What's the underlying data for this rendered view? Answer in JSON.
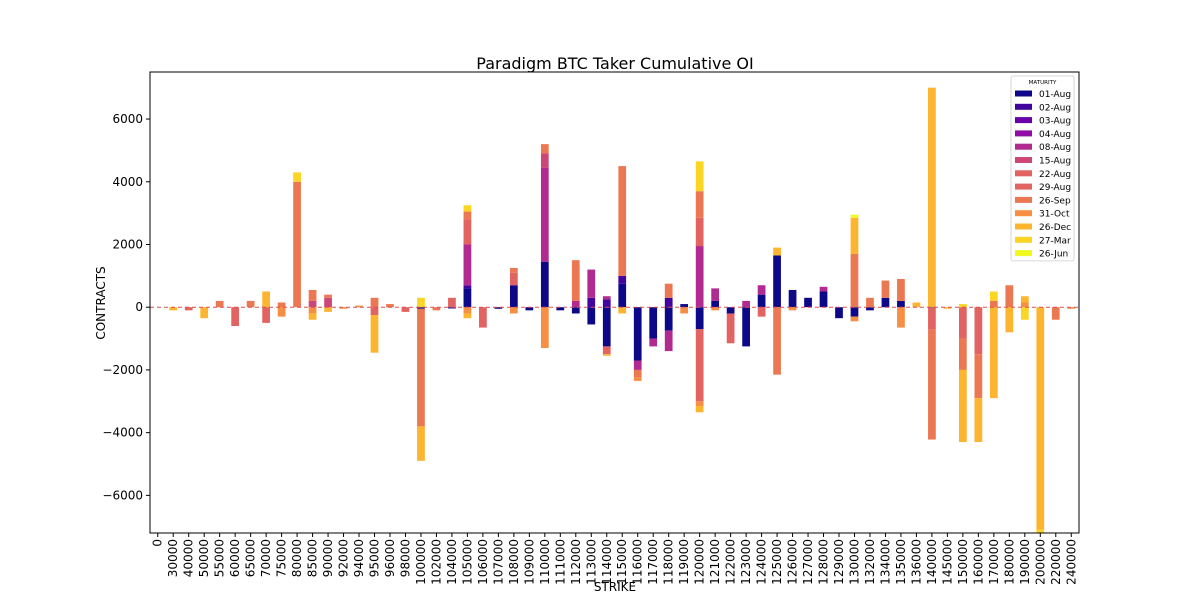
{
  "chart_data": {
    "type": "bar",
    "stacked": true,
    "title": "Paradigm BTC Taker Cumulative OI",
    "xlabel": "STRIKE",
    "ylabel": "CONTRACTS",
    "ylim": [
      -7200,
      7500
    ],
    "yticks": [
      -6000,
      -4000,
      -2000,
      0,
      2000,
      4000,
      6000
    ],
    "ytick_labels": [
      "−6000",
      "−4000",
      "−2000",
      "0",
      "2000",
      "4000",
      "6000"
    ],
    "legend_title": "MATURITY",
    "legend_position": "top-right",
    "categories": [
      "0",
      "30000",
      "40000",
      "50000",
      "55000",
      "60000",
      "65000",
      "70000",
      "75000",
      "80000",
      "85000",
      "90000",
      "92000",
      "94000",
      "95000",
      "96000",
      "98000",
      "100000",
      "102000",
      "104000",
      "105000",
      "106000",
      "107000",
      "108000",
      "109000",
      "110000",
      "111000",
      "112000",
      "113000",
      "114000",
      "115000",
      "116000",
      "117000",
      "118000",
      "119000",
      "120000",
      "121000",
      "122000",
      "123000",
      "124000",
      "125000",
      "126000",
      "127000",
      "128000",
      "129000",
      "130000",
      "132000",
      "134000",
      "135000",
      "136000",
      "140000",
      "145000",
      "150000",
      "160000",
      "170000",
      "180000",
      "190000",
      "200000",
      "220000",
      "240000"
    ],
    "series": [
      {
        "name": "01-Aug",
        "color": "#0d0887",
        "values": [
          0,
          0,
          0,
          0,
          0,
          0,
          0,
          0,
          0,
          0,
          0,
          0,
          0,
          0,
          0,
          0,
          0,
          -50,
          0,
          -40,
          600,
          0,
          -50,
          700,
          -100,
          1450,
          -100,
          -200,
          -550,
          -1250,
          750,
          -1700,
          -1000,
          -750,
          100,
          -700,
          200,
          -200,
          -1250,
          400,
          1650,
          550,
          300,
          500,
          -350,
          -300,
          -100,
          300,
          200,
          0,
          -20,
          0,
          0,
          0,
          0,
          0,
          0,
          0,
          0,
          0
        ]
      },
      {
        "name": "02-Aug",
        "color": "#41049d",
        "values": [
          0,
          0,
          0,
          0,
          0,
          0,
          0,
          0,
          0,
          0,
          0,
          0,
          0,
          0,
          0,
          0,
          0,
          0,
          0,
          0,
          100,
          0,
          0,
          0,
          0,
          0,
          0,
          0,
          300,
          250,
          250,
          0,
          0,
          300,
          0,
          0,
          0,
          0,
          0,
          0,
          0,
          0,
          0,
          0,
          0,
          0,
          0,
          0,
          0,
          0,
          0,
          0,
          0,
          0,
          0,
          0,
          0,
          0,
          0,
          0
        ]
      },
      {
        "name": "03-Aug",
        "color": "#6a00a8",
        "values": [
          0,
          0,
          0,
          0,
          0,
          0,
          0,
          0,
          0,
          0,
          0,
          0,
          0,
          0,
          0,
          0,
          0,
          0,
          0,
          0,
          0,
          0,
          0,
          0,
          0,
          0,
          0,
          0,
          0,
          0,
          0,
          0,
          0,
          0,
          0,
          0,
          0,
          0,
          0,
          0,
          0,
          0,
          0,
          0,
          0,
          0,
          0,
          0,
          0,
          0,
          0,
          0,
          0,
          0,
          0,
          0,
          0,
          0,
          0,
          0
        ]
      },
      {
        "name": "04-Aug",
        "color": "#8f0da4",
        "values": [
          0,
          0,
          0,
          0,
          0,
          0,
          0,
          0,
          0,
          0,
          0,
          0,
          0,
          0,
          0,
          0,
          0,
          0,
          0,
          0,
          0,
          0,
          0,
          0,
          0,
          0,
          0,
          0,
          0,
          0,
          0,
          0,
          0,
          0,
          0,
          0,
          0,
          0,
          0,
          0,
          0,
          0,
          0,
          0,
          0,
          0,
          0,
          0,
          0,
          0,
          0,
          0,
          0,
          0,
          0,
          0,
          0,
          0,
          0,
          0
        ]
      },
      {
        "name": "08-Aug",
        "color": "#b12a90",
        "values": [
          0,
          0,
          0,
          0,
          0,
          0,
          0,
          0,
          0,
          0,
          0,
          0,
          0,
          0,
          0,
          0,
          0,
          0,
          0,
          0,
          1300,
          0,
          0,
          0,
          0,
          3000,
          0,
          200,
          900,
          100,
          0,
          -300,
          -250,
          -650,
          0,
          1950,
          400,
          0,
          200,
          300,
          0,
          0,
          0,
          150,
          0,
          0,
          0,
          0,
          0,
          0,
          0,
          0,
          0,
          0,
          0,
          0,
          0,
          0,
          0,
          0
        ]
      },
      {
        "name": "15-Aug",
        "color": "#cc4778",
        "values": [
          0,
          0,
          0,
          0,
          0,
          0,
          0,
          0,
          0,
          0,
          200,
          300,
          0,
          0,
          0,
          0,
          0,
          0,
          0,
          0,
          0,
          0,
          0,
          0,
          0,
          450,
          0,
          0,
          0,
          0,
          0,
          0,
          0,
          0,
          0,
          0,
          0,
          0,
          0,
          0,
          0,
          0,
          0,
          0,
          0,
          0,
          0,
          0,
          0,
          0,
          0,
          0,
          0,
          0,
          0,
          0,
          0,
          0,
          0,
          0
        ]
      },
      {
        "name": "22-Aug",
        "color": "#e16462",
        "values": [
          0,
          0,
          0,
          0,
          0,
          0,
          0,
          0,
          0,
          0,
          0,
          0,
          0,
          0,
          0,
          0,
          0,
          0,
          0,
          0,
          800,
          0,
          0,
          0,
          0,
          0,
          0,
          0,
          0,
          0,
          0,
          0,
          0,
          0,
          0,
          900,
          0,
          0,
          0,
          0,
          0,
          0,
          0,
          0,
          0,
          0,
          0,
          0,
          0,
          0,
          0,
          0,
          0,
          0,
          0,
          0,
          0,
          0,
          0,
          0
        ]
      },
      {
        "name": "29-Aug",
        "color": "#e16462",
        "values": [
          0,
          0,
          -100,
          0,
          0,
          -600,
          0,
          -500,
          0,
          0,
          0,
          0,
          0,
          0,
          -250,
          0,
          -150,
          0,
          0,
          300,
          0,
          -650,
          0,
          400,
          0,
          0,
          0,
          0,
          0,
          -250,
          0,
          0,
          0,
          0,
          0,
          -2300,
          0,
          -950,
          0,
          -300,
          0,
          0,
          0,
          0,
          0,
          0,
          0,
          0,
          0,
          0,
          -700,
          0,
          -1000,
          -1500,
          0,
          0,
          0,
          0,
          0,
          0
        ]
      },
      {
        "name": "26-Sep",
        "color": "#ec7853",
        "values": [
          0,
          0,
          0,
          0,
          200,
          0,
          200,
          0,
          150,
          4000,
          350,
          100,
          0,
          0,
          300,
          100,
          0,
          -3750,
          -100,
          0,
          250,
          0,
          0,
          150,
          0,
          300,
          0,
          1300,
          0,
          0,
          3500,
          -250,
          0,
          450,
          0,
          850,
          0,
          0,
          0,
          0,
          -2150,
          0,
          0,
          0,
          0,
          1700,
          300,
          550,
          700,
          0,
          -3500,
          0,
          -1000,
          -1400,
          200,
          700,
          0,
          0,
          -400,
          0
        ]
      },
      {
        "name": "31-Oct",
        "color": "#f68f44",
        "values": [
          0,
          0,
          0,
          0,
          0,
          0,
          0,
          0,
          -300,
          0,
          -200,
          0,
          -50,
          50,
          0,
          0,
          0,
          0,
          0,
          0,
          -200,
          0,
          0,
          -200,
          0,
          -1300,
          0,
          0,
          0,
          0,
          0,
          -100,
          0,
          0,
          -200,
          -150,
          -100,
          0,
          0,
          0,
          0,
          -100,
          0,
          0,
          0,
          -150,
          0,
          0,
          -650,
          0,
          0,
          0,
          0,
          0,
          0,
          0,
          150,
          0,
          0,
          -50
        ]
      },
      {
        "name": "26-Dec",
        "color": "#fdb42f",
        "values": [
          0,
          -100,
          0,
          -350,
          0,
          0,
          0,
          500,
          0,
          0,
          -200,
          -150,
          0,
          0,
          -1200,
          0,
          0,
          -1100,
          0,
          0,
          -150,
          0,
          0,
          0,
          0,
          0,
          0,
          0,
          0,
          -50,
          -200,
          0,
          0,
          0,
          0,
          -200,
          0,
          0,
          0,
          0,
          250,
          0,
          0,
          0,
          0,
          1150,
          0,
          0,
          0,
          150,
          7000,
          -50,
          -2300,
          -1400,
          -2900,
          -800,
          200,
          -7100,
          0,
          0
        ]
      },
      {
        "name": "27-Mar",
        "color": "#fbd524",
        "values": [
          0,
          0,
          0,
          0,
          0,
          0,
          0,
          0,
          0,
          300,
          0,
          0,
          0,
          0,
          0,
          0,
          0,
          300,
          0,
          0,
          200,
          0,
          0,
          0,
          0,
          0,
          0,
          0,
          0,
          0,
          0,
          0,
          0,
          0,
          0,
          950,
          0,
          0,
          0,
          0,
          0,
          0,
          0,
          0,
          0,
          0,
          0,
          0,
          0,
          0,
          0,
          0,
          100,
          0,
          300,
          0,
          -400,
          -100,
          0,
          0
        ]
      },
      {
        "name": "26-Jun",
        "color": "#f0f921",
        "values": [
          0,
          0,
          0,
          0,
          0,
          0,
          0,
          0,
          0,
          0,
          0,
          0,
          0,
          0,
          0,
          0,
          0,
          0,
          0,
          0,
          0,
          0,
          0,
          0,
          0,
          0,
          0,
          0,
          0,
          0,
          0,
          0,
          0,
          0,
          0,
          0,
          0,
          0,
          0,
          0,
          0,
          0,
          0,
          0,
          0,
          100,
          0,
          0,
          0,
          0,
          0,
          0,
          0,
          0,
          0,
          0,
          0,
          0,
          0,
          0
        ]
      }
    ]
  }
}
